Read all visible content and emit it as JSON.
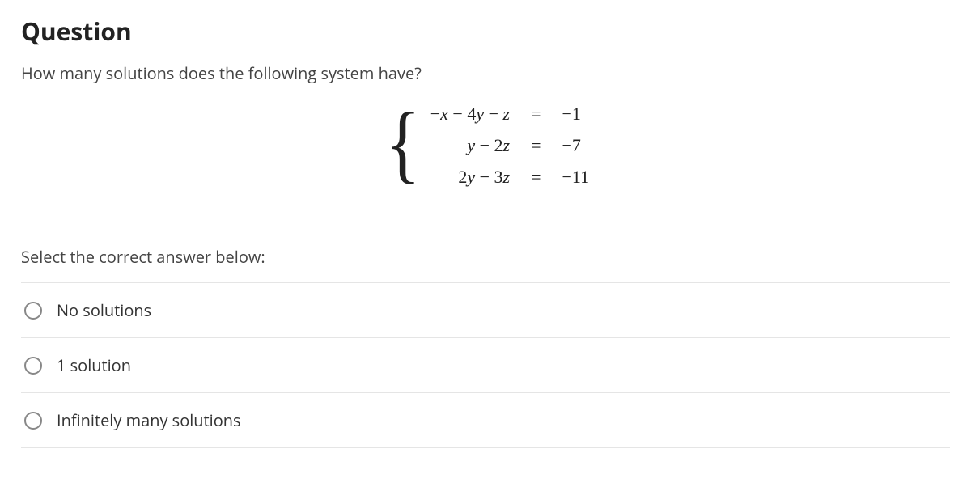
{
  "title": "Question",
  "prompt": "How many solutions does the following system have?",
  "system": {
    "rows": [
      {
        "lhs_html": "<span class='sign'>−</span>x <span class='sign'>−</span> <span class='num'>4</span>y <span class='sign'>−</span> z",
        "eq": "=",
        "rhs": "−1"
      },
      {
        "lhs_html": "y <span class='sign'>−</span> <span class='num'>2</span>z",
        "eq": "=",
        "rhs": "−7"
      },
      {
        "lhs_html": "<span class='num'>2</span>y <span class='sign'>−</span> <span class='num'>3</span>z",
        "eq": "=",
        "rhs": "−11"
      }
    ]
  },
  "instruction": "Select the correct answer below:",
  "options": [
    {
      "label": "No solutions"
    },
    {
      "label": "1 solution"
    },
    {
      "label": "Infinitely many solutions"
    }
  ],
  "style": {
    "title_fontsize": 30,
    "body_fontsize": 20,
    "math_fontsize": 22,
    "text_color": "#333",
    "border_color": "#e5e5e5",
    "radio_border_color": "#888",
    "background_color": "#ffffff"
  }
}
